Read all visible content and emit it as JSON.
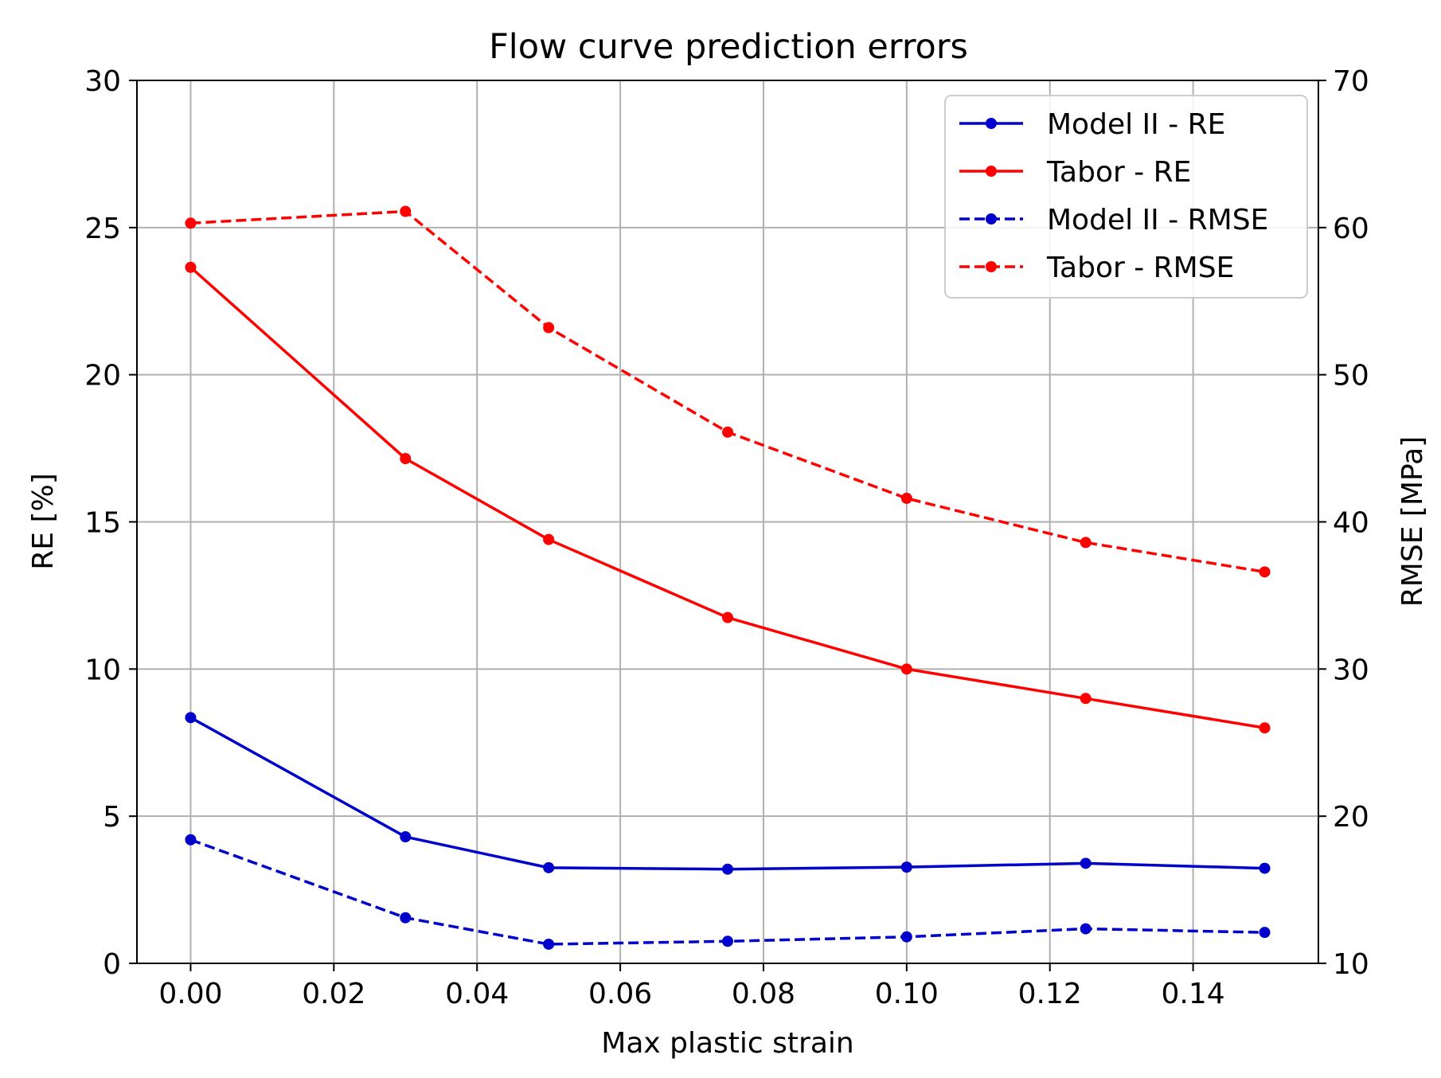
{
  "chart_data": {
    "type": "line",
    "title": "Flow curve prediction errors",
    "xlabel": "Max plastic strain",
    "ylabel_left": "RE [%]",
    "ylabel_right": "RMSE [MPa]",
    "x": [
      0.0,
      0.03,
      0.05,
      0.075,
      0.1,
      0.125,
      0.15
    ],
    "xlim": [
      -0.0075,
      0.1575
    ],
    "ylim_left": [
      0,
      30
    ],
    "ylim_right": [
      10,
      70
    ],
    "x_ticks": [
      "0.00",
      "0.02",
      "0.04",
      "0.06",
      "0.08",
      "0.10",
      "0.12",
      "0.14"
    ],
    "x_tick_values": [
      0.0,
      0.02,
      0.04,
      0.06,
      0.08,
      0.1,
      0.12,
      0.14
    ],
    "y_left_ticks": [
      "0",
      "5",
      "10",
      "15",
      "20",
      "25",
      "30"
    ],
    "y_left_tick_values": [
      0,
      5,
      10,
      15,
      20,
      25,
      30
    ],
    "y_right_ticks": [
      "10",
      "20",
      "30",
      "40",
      "50",
      "60",
      "70"
    ],
    "y_right_tick_values": [
      10,
      20,
      30,
      40,
      50,
      60,
      70
    ],
    "grid": true,
    "legend_position": "top-right",
    "series": [
      {
        "name": "Model II - RE",
        "axis": "left",
        "color": "#0000cc",
        "style": "solid",
        "values": [
          8.35,
          4.3,
          3.25,
          3.2,
          3.27,
          3.4,
          3.23
        ]
      },
      {
        "name": "Tabor - RE",
        "axis": "left",
        "color": "#ff0000",
        "style": "solid",
        "values": [
          23.65,
          17.15,
          14.4,
          11.75,
          10.0,
          9.0,
          8.0
        ]
      },
      {
        "name": "Model II - RMSE",
        "axis": "right",
        "color": "#0000cc",
        "style": "dashed",
        "values": [
          18.4,
          13.1,
          11.3,
          11.5,
          11.8,
          12.35,
          12.1
        ]
      },
      {
        "name": "Tabor - RMSE",
        "axis": "right",
        "color": "#ff0000",
        "style": "dashed",
        "values": [
          60.3,
          61.1,
          53.2,
          46.1,
          41.6,
          38.6,
          36.6
        ]
      }
    ]
  }
}
